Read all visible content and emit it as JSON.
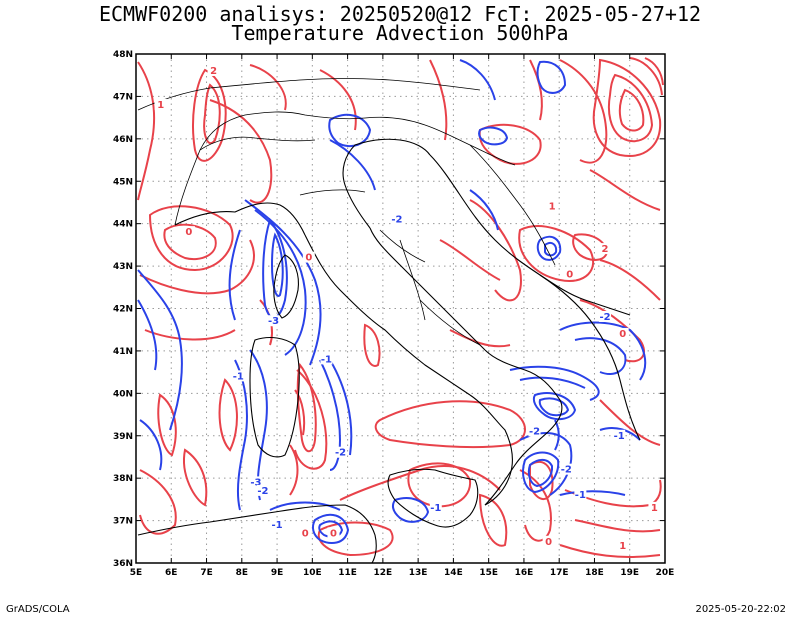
{
  "title_line1": "ECMWF0200 analisys: 20250520@12 FcT: 2025-05-27+12",
  "title_line2": "Temperature Advection 500hPa",
  "footer_left": "GrADS/COLA",
  "footer_right": "2025-05-20-22:02",
  "map": {
    "lon_range": [
      5,
      20
    ],
    "lat_range": [
      36,
      48
    ],
    "lon_labels": [
      "5E",
      "6E",
      "7E",
      "8E",
      "9E",
      "10E",
      "11E",
      "12E",
      "13E",
      "14E",
      "15E",
      "16E",
      "17E",
      "18E",
      "19E",
      "20E"
    ],
    "lat_labels": [
      "36N",
      "37N",
      "38N",
      "39N",
      "40N",
      "41N",
      "42N",
      "43N",
      "44N",
      "45N",
      "46N",
      "47N",
      "48N"
    ],
    "positive_color": "#e8424a",
    "negative_color": "#2a42e8",
    "contour_labels": [
      {
        "text": "-2",
        "lon": 12.4,
        "lat": 44.1,
        "sign": "neg"
      },
      {
        "text": "-3",
        "lon": 8.9,
        "lat": 41.7,
        "sign": "neg"
      },
      {
        "text": "-1",
        "lon": 10.4,
        "lat": 40.8,
        "sign": "neg"
      },
      {
        "text": "-2",
        "lon": 10.8,
        "lat": 38.6,
        "sign": "neg"
      },
      {
        "text": "-3",
        "lon": 8.4,
        "lat": 37.9,
        "sign": "neg"
      },
      {
        "text": "-2",
        "lon": 8.6,
        "lat": 37.7,
        "sign": "neg"
      },
      {
        "text": "-1",
        "lon": 9.0,
        "lat": 36.9,
        "sign": "neg"
      },
      {
        "text": "-1",
        "lon": 13.5,
        "lat": 37.3,
        "sign": "neg"
      },
      {
        "text": "-2",
        "lon": 16.3,
        "lat": 39.1,
        "sign": "neg"
      },
      {
        "text": "-2",
        "lon": 17.2,
        "lat": 38.2,
        "sign": "neg"
      },
      {
        "text": "-1",
        "lon": 17.6,
        "lat": 37.6,
        "sign": "neg"
      },
      {
        "text": "-1",
        "lon": 18.7,
        "lat": 39.0,
        "sign": "neg"
      },
      {
        "text": "-2",
        "lon": 18.3,
        "lat": 41.8,
        "sign": "neg"
      },
      {
        "text": "-1",
        "lon": 7.9,
        "lat": 40.4,
        "sign": "neg"
      },
      {
        "text": "2",
        "lon": 7.2,
        "lat": 47.6,
        "sign": "pos"
      },
      {
        "text": "1",
        "lon": 5.7,
        "lat": 46.8,
        "sign": "pos"
      },
      {
        "text": "0",
        "lon": 6.5,
        "lat": 43.8,
        "sign": "pos"
      },
      {
        "text": "0",
        "lon": 9.9,
        "lat": 43.2,
        "sign": "pos"
      },
      {
        "text": "1",
        "lon": 16.8,
        "lat": 44.4,
        "sign": "pos"
      },
      {
        "text": "0",
        "lon": 17.3,
        "lat": 42.8,
        "sign": "pos"
      },
      {
        "text": "2",
        "lon": 18.3,
        "lat": 43.4,
        "sign": "pos"
      },
      {
        "text": "0",
        "lon": 18.8,
        "lat": 41.4,
        "sign": "pos"
      },
      {
        "text": "0",
        "lon": 10.6,
        "lat": 36.7,
        "sign": "pos"
      },
      {
        "text": "0",
        "lon": 9.8,
        "lat": 36.7,
        "sign": "pos"
      },
      {
        "text": "0",
        "lon": 16.7,
        "lat": 36.5,
        "sign": "pos"
      },
      {
        "text": "1",
        "lon": 19.7,
        "lat": 37.3,
        "sign": "pos"
      },
      {
        "text": "1",
        "lon": 18.8,
        "lat": 36.4,
        "sign": "pos"
      }
    ]
  }
}
